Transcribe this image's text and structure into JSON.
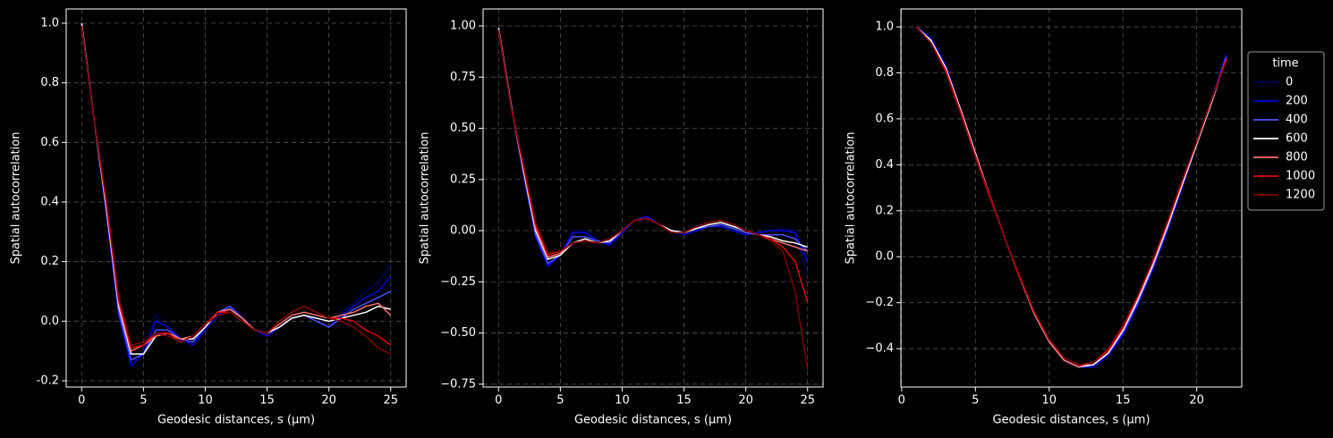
{
  "chart_data": [
    {
      "type": "line",
      "xlabel": "Geodesic distances, s (μm)",
      "ylabel": "Spatial autocorrelation",
      "x": [
        0,
        1,
        2,
        3,
        4,
        5,
        6,
        7,
        8,
        9,
        10,
        11,
        12,
        13,
        14,
        15,
        16,
        17,
        18,
        19,
        20,
        21,
        22,
        23,
        24,
        25
      ],
      "xlim": [
        -1.25,
        26.25
      ],
      "xticks": [
        0,
        5,
        10,
        15,
        20,
        25
      ],
      "ylim": [
        -0.221,
        1.048
      ],
      "yticks": [
        -0.2,
        {
          "value": 0,
          "label": "0.0"
        },
        0.2,
        0.4,
        0.6,
        0.8,
        {
          "value": 1,
          "label": "1.0"
        }
      ],
      "grid": true,
      "series": [
        {
          "color": "#00005e",
          "values": [
            1,
            0.69,
            0.37,
            0.03,
            -0.14,
            -0.1,
            0.02,
            -0.02,
            -0.06,
            -0.07,
            -0.03,
            0.02,
            0.05,
            0.02,
            -0.03,
            -0.05,
            -0.02,
            0.01,
            0.02,
            0.0,
            -0.02,
            0.03,
            0.06,
            0.1,
            0.13,
            0.19
          ]
        },
        {
          "color": "#0000e0",
          "values": [
            1,
            0.68,
            0.36,
            0.02,
            -0.15,
            -0.11,
            0.0,
            -0.02,
            -0.06,
            -0.08,
            -0.03,
            0.02,
            0.05,
            0.01,
            -0.03,
            -0.05,
            -0.02,
            0.01,
            0.02,
            0.0,
            -0.02,
            0.02,
            0.05,
            0.08,
            0.1,
            0.15
          ]
        },
        {
          "color": "#5050ff",
          "values": [
            1,
            0.68,
            0.37,
            0.03,
            -0.13,
            -0.11,
            -0.03,
            -0.03,
            -0.06,
            -0.07,
            -0.02,
            0.03,
            0.05,
            0.01,
            -0.03,
            -0.04,
            -0.02,
            0.01,
            0.02,
            0.0,
            -0.02,
            0.01,
            0.04,
            0.06,
            0.08,
            0.1
          ]
        },
        {
          "color": "#ffffff",
          "values": [
            1,
            0.68,
            0.38,
            0.05,
            -0.11,
            -0.11,
            -0.05,
            -0.04,
            -0.06,
            -0.06,
            -0.02,
            0.03,
            0.04,
            0.01,
            -0.03,
            -0.04,
            -0.02,
            0.01,
            0.02,
            0.01,
            0.0,
            0.01,
            0.02,
            0.03,
            0.05,
            0.04
          ]
        },
        {
          "color": "#ff7070",
          "values": [
            0.99,
            0.68,
            0.39,
            0.06,
            -0.1,
            -0.08,
            -0.05,
            -0.04,
            -0.06,
            -0.05,
            -0.01,
            0.03,
            0.04,
            0.01,
            -0.03,
            -0.04,
            -0.01,
            0.02,
            0.03,
            0.02,
            0.01,
            0.02,
            0.03,
            0.05,
            0.06,
            0.02
          ]
        },
        {
          "color": "#e00000",
          "values": [
            0.99,
            0.68,
            0.4,
            0.07,
            -0.09,
            -0.08,
            -0.04,
            -0.04,
            -0.07,
            -0.05,
            -0.01,
            0.03,
            0.03,
            0.0,
            -0.03,
            -0.04,
            0.0,
            0.03,
            0.05,
            0.03,
            0.01,
            0.01,
            0.0,
            -0.03,
            -0.05,
            -0.08
          ]
        },
        {
          "color": "#800000",
          "values": [
            0.99,
            0.68,
            0.41,
            0.08,
            -0.08,
            -0.07,
            -0.04,
            -0.05,
            -0.07,
            -0.05,
            -0.01,
            0.02,
            0.03,
            0.0,
            -0.03,
            -0.04,
            0.0,
            0.03,
            0.05,
            0.03,
            0.01,
            0.0,
            -0.02,
            -0.05,
            -0.09,
            -0.11
          ]
        }
      ]
    },
    {
      "type": "line",
      "xlabel": "Geodesic distances, s (μm)",
      "ylabel": "Spatial autocorrelation",
      "x": [
        0,
        1,
        2,
        3,
        4,
        5,
        6,
        7,
        8,
        9,
        10,
        11,
        12,
        13,
        14,
        15,
        16,
        17,
        18,
        19,
        20,
        21,
        22,
        23,
        24,
        25
      ],
      "xlim": [
        -1.25,
        26.25
      ],
      "xticks": [
        0,
        5,
        10,
        15,
        20,
        25
      ],
      "ylim": [
        -0.764,
        1.083
      ],
      "yticks": [
        {
          "value": -0.75,
          "label": "−0.75"
        },
        {
          "value": -0.5,
          "label": "−0.50"
        },
        {
          "value": -0.25,
          "label": "−0.25"
        },
        {
          "value": 0,
          "label": "0.00"
        },
        0.25,
        {
          "value": 0.5,
          "label": "0.50"
        },
        0.75,
        {
          "value": 1,
          "label": "1.00"
        }
      ],
      "grid": true,
      "series": [
        {
          "color": "#00005e",
          "values": [
            0.99,
            0.62,
            0.28,
            -0.03,
            -0.18,
            -0.12,
            0.0,
            0.0,
            -0.05,
            -0.07,
            -0.01,
            0.05,
            0.06,
            0.03,
            0.0,
            -0.02,
            0.0,
            0.02,
            0.02,
            0.0,
            -0.02,
            -0.01,
            0.0,
            0.01,
            0.0,
            -0.22
          ]
        },
        {
          "color": "#0000e0",
          "values": [
            0.99,
            0.62,
            0.28,
            -0.03,
            -0.17,
            -0.12,
            -0.01,
            -0.01,
            -0.05,
            -0.07,
            -0.01,
            0.05,
            0.07,
            0.03,
            0.0,
            -0.02,
            0.0,
            0.02,
            0.02,
            0.0,
            -0.02,
            -0.01,
            0.0,
            0.0,
            -0.01,
            -0.15
          ]
        },
        {
          "color": "#5050ff",
          "values": [
            0.99,
            0.62,
            0.29,
            -0.02,
            -0.16,
            -0.12,
            -0.03,
            -0.03,
            -0.05,
            -0.06,
            0.0,
            0.05,
            0.06,
            0.03,
            0.0,
            -0.01,
            0.01,
            0.02,
            0.03,
            0.01,
            -0.01,
            -0.02,
            -0.02,
            -0.02,
            -0.04,
            -0.1
          ]
        },
        {
          "color": "#ffffff",
          "values": [
            0.99,
            0.62,
            0.3,
            0.0,
            -0.14,
            -0.12,
            -0.06,
            -0.04,
            -0.06,
            -0.05,
            0.0,
            0.05,
            0.06,
            0.03,
            0.0,
            -0.01,
            0.01,
            0.03,
            0.04,
            0.02,
            0.0,
            -0.02,
            -0.03,
            -0.05,
            -0.06,
            -0.08
          ]
        },
        {
          "color": "#ff7070",
          "values": [
            0.98,
            0.61,
            0.31,
            0.01,
            -0.13,
            -0.11,
            -0.06,
            -0.05,
            -0.06,
            -0.04,
            0.0,
            0.05,
            0.06,
            0.03,
            -0.01,
            -0.01,
            0.02,
            0.04,
            0.05,
            0.03,
            0.0,
            -0.02,
            -0.04,
            -0.06,
            -0.08,
            -0.1
          ]
        },
        {
          "color": "#e00000",
          "values": [
            0.98,
            0.61,
            0.32,
            0.03,
            -0.12,
            -0.1,
            -0.06,
            -0.05,
            -0.06,
            -0.04,
            0.0,
            0.05,
            0.06,
            0.03,
            -0.01,
            -0.01,
            0.02,
            0.04,
            0.05,
            0.03,
            0.0,
            -0.02,
            -0.04,
            -0.08,
            -0.15,
            -0.35
          ]
        },
        {
          "color": "#800000",
          "values": [
            0.98,
            0.61,
            0.33,
            0.04,
            -0.11,
            -0.1,
            -0.06,
            -0.05,
            -0.06,
            -0.04,
            0.0,
            0.05,
            0.06,
            0.03,
            -0.01,
            -0.01,
            0.02,
            0.04,
            0.05,
            0.03,
            0.0,
            -0.02,
            -0.05,
            -0.1,
            -0.3,
            -0.68
          ]
        }
      ]
    },
    {
      "type": "line",
      "xlabel": "Geodesic distances, s (μm)",
      "ylabel": "Spatial autocorrelation",
      "x": [
        1,
        2,
        3,
        4,
        5,
        6,
        7,
        8,
        9,
        10,
        11,
        12,
        13,
        14,
        15,
        16,
        17,
        18,
        19,
        20,
        21,
        22
      ],
      "xlim": [
        -0.05,
        23.05
      ],
      "xticks": [
        0,
        5,
        10,
        15,
        20
      ],
      "ylim": [
        -0.567,
        1.078
      ],
      "yticks": [
        {
          "value": -0.4,
          "label": "−0.4"
        },
        {
          "value": -0.2,
          "label": "−0.2"
        },
        {
          "value": 0,
          "label": "0.0"
        },
        0.2,
        0.4,
        0.6,
        0.8,
        {
          "value": 1,
          "label": "1.0"
        }
      ],
      "grid": true,
      "legend": {
        "title": "time",
        "position": "right"
      },
      "series": [
        {
          "name": "0",
          "color": "#00005e",
          "values": [
            1,
            0.95,
            0.83,
            0.64,
            0.45,
            0.26,
            0.08,
            -0.09,
            -0.25,
            -0.37,
            -0.45,
            -0.48,
            -0.48,
            -0.43,
            -0.34,
            -0.21,
            -0.06,
            0.11,
            0.3,
            0.49,
            0.68,
            0.88
          ]
        },
        {
          "name": "200",
          "color": "#0000e0",
          "values": [
            1,
            0.95,
            0.83,
            0.64,
            0.45,
            0.26,
            0.08,
            -0.09,
            -0.25,
            -0.37,
            -0.45,
            -0.48,
            -0.48,
            -0.43,
            -0.34,
            -0.21,
            -0.06,
            0.11,
            0.3,
            0.49,
            0.68,
            0.88
          ]
        },
        {
          "name": "400",
          "color": "#5050ff",
          "values": [
            1,
            0.94,
            0.82,
            0.64,
            0.45,
            0.26,
            0.08,
            -0.09,
            -0.25,
            -0.37,
            -0.45,
            -0.48,
            -0.47,
            -0.42,
            -0.33,
            -0.2,
            -0.05,
            0.12,
            0.31,
            0.49,
            0.67,
            0.87
          ]
        },
        {
          "name": "600",
          "color": "#ffffff",
          "values": [
            1,
            0.94,
            0.82,
            0.64,
            0.45,
            0.26,
            0.08,
            -0.09,
            -0.25,
            -0.37,
            -0.45,
            -0.48,
            -0.47,
            -0.42,
            -0.32,
            -0.19,
            -0.04,
            0.13,
            0.31,
            0.49,
            0.67,
            0.86
          ]
        },
        {
          "name": "800",
          "color": "#ff7070",
          "values": [
            1,
            0.93,
            0.81,
            0.63,
            0.44,
            0.26,
            0.08,
            -0.09,
            -0.25,
            -0.37,
            -0.45,
            -0.48,
            -0.46,
            -0.41,
            -0.31,
            -0.18,
            -0.03,
            0.14,
            0.32,
            0.5,
            0.68,
            0.86
          ]
        },
        {
          "name": "1000",
          "color": "#e00000",
          "values": [
            1,
            0.93,
            0.81,
            0.63,
            0.44,
            0.26,
            0.08,
            -0.09,
            -0.24,
            -0.36,
            -0.44,
            -0.47,
            -0.46,
            -0.41,
            -0.31,
            -0.17,
            -0.02,
            0.15,
            0.33,
            0.5,
            0.68,
            0.86
          ]
        },
        {
          "name": "1200",
          "color": "#800000",
          "values": [
            1,
            0.93,
            0.8,
            0.62,
            0.43,
            0.25,
            0.08,
            -0.08,
            -0.24,
            -0.36,
            -0.44,
            -0.47,
            -0.46,
            -0.4,
            -0.3,
            -0.17,
            -0.02,
            0.15,
            0.33,
            0.5,
            0.68,
            0.85
          ]
        }
      ]
    }
  ]
}
